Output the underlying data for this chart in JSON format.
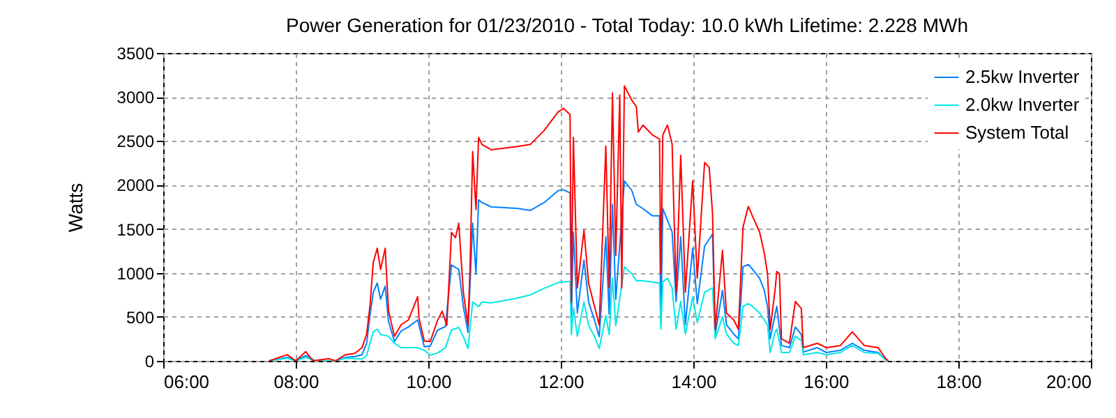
{
  "chart_data": {
    "type": "line",
    "title": "Power Generation for 01/23/2010 - Total Today: 10.0 kWh   Lifetime: 2.228 MWh",
    "ylabel": "Watts",
    "xlim": [
      6,
      20
    ],
    "ylim": [
      0,
      3500
    ],
    "xticks": [
      {
        "value": 6,
        "label": "06:00"
      },
      {
        "value": 8,
        "label": "08:00"
      },
      {
        "value": 10,
        "label": "10:00"
      },
      {
        "value": 12,
        "label": "12:00"
      },
      {
        "value": 14,
        "label": "14:00"
      },
      {
        "value": 16,
        "label": "16:00"
      },
      {
        "value": 18,
        "label": "18:00"
      },
      {
        "value": 20,
        "label": "20:00"
      }
    ],
    "yticks": [
      0,
      500,
      1000,
      1500,
      2000,
      2500,
      3000,
      3500
    ],
    "grid": true,
    "legend": "top right",
    "line_style": "solid",
    "series": [
      {
        "name": "2.5kw Inverter",
        "color": "#0080ff",
        "x": [
          7.6,
          7.87,
          8.0,
          8.15,
          8.3,
          8.6,
          8.75,
          8.89,
          9.0,
          9.07,
          9.12,
          9.17,
          9.23,
          9.28,
          9.35,
          9.4,
          9.49,
          9.59,
          9.7,
          9.84,
          9.94,
          10.03,
          10.14,
          10.26,
          10.35,
          10.46,
          10.53,
          10.6,
          10.67,
          10.72,
          10.76,
          10.81,
          10.95,
          11.33,
          11.54,
          11.75,
          11.96,
          12.04,
          12.14,
          12.16,
          12.19,
          12.25,
          12.35,
          12.42,
          12.51,
          12.58,
          12.68,
          12.73,
          12.78,
          12.83,
          12.96,
          13.07,
          13.14,
          13.24,
          13.38,
          13.49,
          13.51,
          13.54,
          13.68,
          13.74,
          13.81,
          13.88,
          13.99,
          14.06,
          14.17,
          14.29,
          14.33,
          14.44,
          14.5,
          14.61,
          14.68,
          14.75,
          14.83,
          14.89,
          15.0,
          15.07,
          15.12,
          15.16,
          15.23,
          15.26,
          15.33,
          15.45,
          15.54,
          15.63,
          15.66,
          15.87,
          16.01,
          16.22,
          16.4,
          16.58,
          16.79,
          16.89,
          16.94
        ],
        "values": [
          0,
          40,
          0,
          60,
          0,
          0,
          40,
          50,
          70,
          200,
          515,
          780,
          885,
          700,
          850,
          450,
          220,
          340,
          385,
          465,
          160,
          170,
          350,
          390,
          1090,
          1040,
          615,
          325,
          1565,
          985,
          1830,
          1800,
          1750,
          1735,
          1710,
          1800,
          1935,
          1945,
          1910,
          500,
          1460,
          545,
          1145,
          670,
          460,
          275,
          1410,
          530,
          1780,
          700,
          2045,
          1940,
          1780,
          1730,
          1650,
          1650,
          470,
          1730,
          1465,
          675,
          1410,
          410,
          1280,
          650,
          1305,
          1440,
          300,
          800,
          410,
          305,
          250,
          1070,
          1095,
          1045,
          940,
          805,
          620,
          250,
          515,
          620,
          175,
          150,
          385,
          300,
          100,
          150,
          95,
          120,
          200,
          120,
          95,
          20,
          0
        ]
      },
      {
        "name": "2.0kw Inverter",
        "color": "#00e8e8",
        "x": [
          7.6,
          7.87,
          8.0,
          8.15,
          8.3,
          8.6,
          8.75,
          8.89,
          9.0,
          9.07,
          9.12,
          9.17,
          9.23,
          9.28,
          9.4,
          9.49,
          9.59,
          9.84,
          9.94,
          10.03,
          10.14,
          10.26,
          10.35,
          10.46,
          10.53,
          10.6,
          10.67,
          10.76,
          10.81,
          10.95,
          11.33,
          11.54,
          11.75,
          11.96,
          12.14,
          12.16,
          12.19,
          12.25,
          12.35,
          12.42,
          12.51,
          12.58,
          12.68,
          12.73,
          12.78,
          12.83,
          12.96,
          13.07,
          13.14,
          13.24,
          13.49,
          13.51,
          13.54,
          13.61,
          13.68,
          13.74,
          13.81,
          13.88,
          13.99,
          14.06,
          14.17,
          14.29,
          14.33,
          14.44,
          14.5,
          14.61,
          14.68,
          14.75,
          14.83,
          14.89,
          15.0,
          15.07,
          15.12,
          15.16,
          15.23,
          15.26,
          15.33,
          15.45,
          15.54,
          15.63,
          15.66,
          15.87,
          16.01,
          16.22,
          16.4,
          16.58,
          16.79,
          16.89,
          16.94
        ],
        "values": [
          0,
          30,
          0,
          40,
          0,
          0,
          30,
          25,
          20,
          60,
          200,
          330,
          360,
          300,
          280,
          200,
          150,
          150,
          120,
          65,
          90,
          150,
          350,
          380,
          275,
          140,
          670,
          615,
          670,
          660,
          710,
          750,
          825,
          890,
          905,
          300,
          600,
          280,
          670,
          405,
          275,
          140,
          515,
          300,
          940,
          400,
          1070,
          990,
          910,
          910,
          885,
          360,
          900,
          940,
          830,
          360,
          675,
          305,
          725,
          435,
          780,
          830,
          250,
          500,
          305,
          200,
          175,
          620,
          650,
          620,
          545,
          465,
          410,
          95,
          320,
          360,
          95,
          95,
          280,
          230,
          70,
          95,
          70,
          95,
          175,
          95,
          85,
          20,
          0
        ]
      },
      {
        "name": "System Total",
        "color": "#ff0000",
        "x": [
          7.6,
          7.87,
          8.0,
          8.15,
          8.26,
          8.5,
          8.6,
          8.75,
          8.89,
          9.0,
          9.07,
          9.12,
          9.17,
          9.23,
          9.28,
          9.35,
          9.4,
          9.49,
          9.59,
          9.7,
          9.84,
          9.86,
          9.94,
          10.03,
          10.14,
          10.21,
          10.28,
          10.35,
          10.41,
          10.46,
          10.53,
          10.6,
          10.63,
          10.67,
          10.72,
          10.76,
          10.81,
          10.95,
          11.33,
          11.54,
          11.75,
          11.96,
          12.04,
          12.14,
          12.16,
          12.19,
          12.25,
          12.35,
          12.42,
          12.51,
          12.58,
          12.68,
          12.73,
          12.78,
          12.83,
          12.89,
          12.92,
          12.96,
          13.07,
          13.14,
          13.17,
          13.24,
          13.38,
          13.49,
          13.51,
          13.54,
          13.61,
          13.68,
          13.74,
          13.81,
          13.88,
          13.99,
          14.06,
          14.17,
          14.24,
          14.29,
          14.33,
          14.44,
          14.5,
          14.61,
          14.68,
          14.75,
          14.83,
          14.89,
          15.0,
          15.07,
          15.12,
          15.16,
          15.23,
          15.26,
          15.3,
          15.33,
          15.45,
          15.54,
          15.63,
          15.66,
          15.87,
          16.01,
          16.22,
          16.4,
          16.58,
          16.79,
          16.89,
          16.94
        ],
        "values": [
          0,
          70,
          0,
          105,
          0,
          25,
          0,
          70,
          85,
          150,
          305,
          620,
          1120,
          1280,
          1040,
          1280,
          570,
          280,
          410,
          465,
          730,
          490,
          225,
          220,
          460,
          565,
          405,
          1460,
          1400,
          1565,
          775,
          405,
          1040,
          2380,
          1720,
          2540,
          2460,
          2400,
          2435,
          2460,
          2620,
          2830,
          2870,
          2800,
          670,
          2540,
          830,
          1485,
          880,
          615,
          405,
          2440,
          830,
          3045,
          1200,
          3020,
          830,
          3125,
          2965,
          2890,
          2600,
          2680,
          2570,
          2520,
          990,
          2570,
          2680,
          2465,
          780,
          2335,
          780,
          2045,
          940,
          2255,
          2200,
          1675,
          360,
          1255,
          545,
          465,
          360,
          1520,
          1755,
          1650,
          1465,
          1230,
          990,
          360,
          780,
          1015,
          990,
          250,
          200,
          675,
          595,
          150,
          200,
          150,
          175,
          330,
          175,
          150,
          40,
          0
        ]
      }
    ]
  }
}
